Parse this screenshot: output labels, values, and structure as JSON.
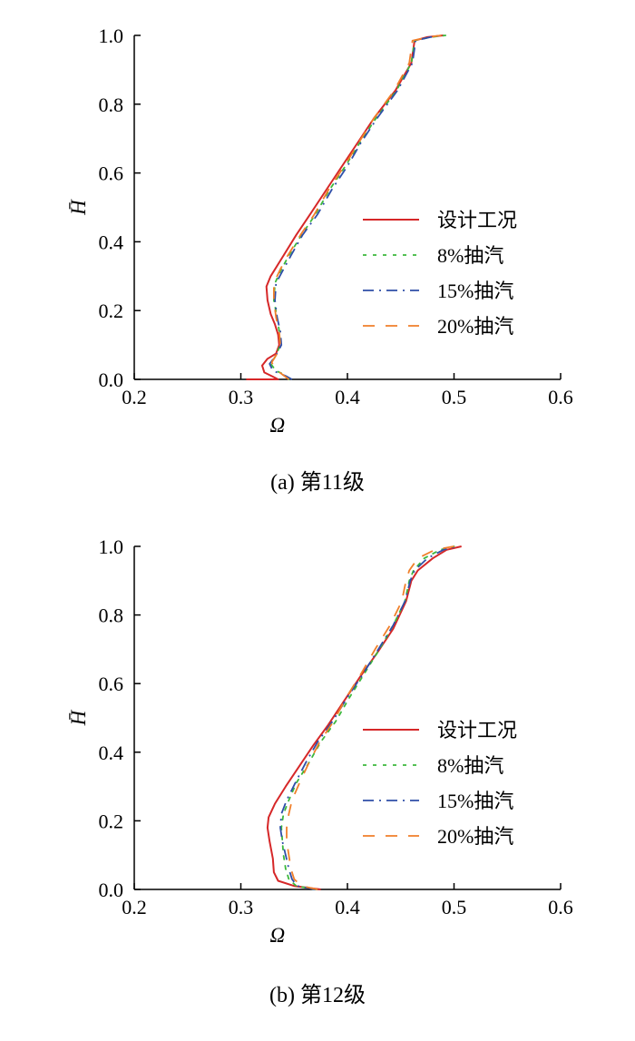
{
  "figure": {
    "captions": [
      "(a)  第11级",
      "(b)  第12级"
    ]
  },
  "legend_entries": [
    "设计工况",
    "8%抽汽",
    "15%抽汽",
    "20%抽汽"
  ],
  "chart_data": [
    {
      "type": "line",
      "title": "",
      "caption": "(a)  第11级",
      "xlabel": "Ω",
      "ylabel": "H̄",
      "xlim": [
        0.2,
        0.6
      ],
      "ylim": [
        0.0,
        1.0
      ],
      "xticks": [
        "0.2",
        "0.3",
        "0.4",
        "0.5",
        "0.6"
      ],
      "yticks": [
        "0.0",
        "0.2",
        "0.4",
        "0.6",
        "0.8",
        "1.0"
      ],
      "grid": false,
      "legend_position": "right",
      "series": [
        {
          "name": "设计工况",
          "color": "#d62728",
          "style": "solid",
          "points": [
            [
              0.305,
              0.0
            ],
            [
              0.335,
              0.0
            ],
            [
              0.33,
              0.008
            ],
            [
              0.322,
              0.02
            ],
            [
              0.32,
              0.04
            ],
            [
              0.325,
              0.06
            ],
            [
              0.333,
              0.075
            ],
            [
              0.336,
              0.1
            ],
            [
              0.335,
              0.13
            ],
            [
              0.332,
              0.16
            ],
            [
              0.328,
              0.19
            ],
            [
              0.325,
              0.23
            ],
            [
              0.324,
              0.27
            ],
            [
              0.328,
              0.3
            ],
            [
              0.34,
              0.36
            ],
            [
              0.352,
              0.42
            ],
            [
              0.365,
              0.48
            ],
            [
              0.38,
              0.55
            ],
            [
              0.395,
              0.62
            ],
            [
              0.41,
              0.69
            ],
            [
              0.425,
              0.76
            ],
            [
              0.445,
              0.84
            ],
            [
              0.46,
              0.92
            ],
            [
              0.463,
              0.985
            ],
            [
              0.475,
              0.995
            ],
            [
              0.49,
              1.0
            ]
          ]
        },
        {
          "name": "8%抽汽",
          "color": "#3cb83c",
          "style": "dotted",
          "points": [
            [
              0.345,
              0.0
            ],
            [
              0.342,
              0.012
            ],
            [
              0.333,
              0.025
            ],
            [
              0.328,
              0.045
            ],
            [
              0.333,
              0.07
            ],
            [
              0.337,
              0.1
            ],
            [
              0.336,
              0.14
            ],
            [
              0.334,
              0.18
            ],
            [
              0.331,
              0.23
            ],
            [
              0.332,
              0.28
            ],
            [
              0.338,
              0.32
            ],
            [
              0.345,
              0.36
            ],
            [
              0.357,
              0.42
            ],
            [
              0.37,
              0.48
            ],
            [
              0.383,
              0.55
            ],
            [
              0.398,
              0.62
            ],
            [
              0.412,
              0.69
            ],
            [
              0.427,
              0.76
            ],
            [
              0.446,
              0.84
            ],
            [
              0.46,
              0.92
            ],
            [
              0.463,
              0.985
            ],
            [
              0.478,
              0.995
            ],
            [
              0.492,
              1.0
            ]
          ]
        },
        {
          "name": "15%抽汽",
          "color": "#2f4fa8",
          "style": "dashdot",
          "points": [
            [
              0.348,
              0.0
            ],
            [
              0.342,
              0.01
            ],
            [
              0.33,
              0.025
            ],
            [
              0.327,
              0.045
            ],
            [
              0.333,
              0.07
            ],
            [
              0.338,
              0.1
            ],
            [
              0.337,
              0.14
            ],
            [
              0.334,
              0.18
            ],
            [
              0.332,
              0.23
            ],
            [
              0.333,
              0.28
            ],
            [
              0.34,
              0.32
            ],
            [
              0.347,
              0.36
            ],
            [
              0.358,
              0.42
            ],
            [
              0.372,
              0.48
            ],
            [
              0.385,
              0.55
            ],
            [
              0.4,
              0.62
            ],
            [
              0.413,
              0.69
            ],
            [
              0.428,
              0.76
            ],
            [
              0.447,
              0.84
            ],
            [
              0.461,
              0.92
            ],
            [
              0.464,
              0.985
            ],
            [
              0.478,
              0.995
            ],
            [
              0.49,
              1.0
            ]
          ]
        },
        {
          "name": "20%抽汽",
          "color": "#f07f2a",
          "style": "dashed",
          "points": [
            [
              0.345,
              0.0
            ],
            [
              0.34,
              0.012
            ],
            [
              0.332,
              0.03
            ],
            [
              0.329,
              0.05
            ],
            [
              0.334,
              0.075
            ],
            [
              0.337,
              0.1
            ],
            [
              0.336,
              0.14
            ],
            [
              0.333,
              0.18
            ],
            [
              0.331,
              0.23
            ],
            [
              0.331,
              0.28
            ],
            [
              0.337,
              0.32
            ],
            [
              0.344,
              0.36
            ],
            [
              0.356,
              0.42
            ],
            [
              0.369,
              0.48
            ],
            [
              0.382,
              0.55
            ],
            [
              0.397,
              0.62
            ],
            [
              0.411,
              0.69
            ],
            [
              0.425,
              0.76
            ],
            [
              0.444,
              0.84
            ],
            [
              0.458,
              0.92
            ],
            [
              0.461,
              0.985
            ],
            [
              0.476,
              0.995
            ],
            [
              0.488,
              1.0
            ]
          ]
        }
      ]
    },
    {
      "type": "line",
      "title": "",
      "caption": "(b)  第12级",
      "xlabel": "Ω",
      "ylabel": "H̄",
      "xlim": [
        0.2,
        0.6
      ],
      "ylim": [
        0.0,
        1.0
      ],
      "xticks": [
        "0.2",
        "0.3",
        "0.4",
        "0.5",
        "0.6"
      ],
      "yticks": [
        "0.0",
        "0.2",
        "0.4",
        "0.6",
        "0.8",
        "1.0"
      ],
      "grid": false,
      "legend_position": "right",
      "series": [
        {
          "name": "设计工况",
          "color": "#d62728",
          "style": "solid",
          "points": [
            [
              0.375,
              0.0
            ],
            [
              0.35,
              0.01
            ],
            [
              0.335,
              0.025
            ],
            [
              0.331,
              0.05
            ],
            [
              0.33,
              0.09
            ],
            [
              0.327,
              0.14
            ],
            [
              0.325,
              0.18
            ],
            [
              0.326,
              0.21
            ],
            [
              0.332,
              0.25
            ],
            [
              0.342,
              0.3
            ],
            [
              0.355,
              0.36
            ],
            [
              0.368,
              0.42
            ],
            [
              0.382,
              0.48
            ],
            [
              0.397,
              0.55
            ],
            [
              0.412,
              0.62
            ],
            [
              0.428,
              0.69
            ],
            [
              0.443,
              0.76
            ],
            [
              0.455,
              0.84
            ],
            [
              0.46,
              0.9
            ],
            [
              0.466,
              0.93
            ],
            [
              0.48,
              0.965
            ],
            [
              0.493,
              0.99
            ],
            [
              0.507,
              1.0
            ]
          ]
        },
        {
          "name": "8%抽汽",
          "color": "#3cb83c",
          "style": "dotted",
          "points": [
            [
              0.37,
              0.0
            ],
            [
              0.352,
              0.01
            ],
            [
              0.345,
              0.03
            ],
            [
              0.342,
              0.06
            ],
            [
              0.34,
              0.1
            ],
            [
              0.339,
              0.14
            ],
            [
              0.338,
              0.18
            ],
            [
              0.34,
              0.22
            ],
            [
              0.345,
              0.26
            ],
            [
              0.352,
              0.31
            ],
            [
              0.364,
              0.37
            ],
            [
              0.375,
              0.43
            ],
            [
              0.389,
              0.49
            ],
            [
              0.402,
              0.56
            ],
            [
              0.416,
              0.63
            ],
            [
              0.43,
              0.7
            ],
            [
              0.443,
              0.77
            ],
            [
              0.454,
              0.84
            ],
            [
              0.458,
              0.9
            ],
            [
              0.462,
              0.93
            ],
            [
              0.472,
              0.965
            ],
            [
              0.487,
              0.99
            ],
            [
              0.5,
              1.0
            ]
          ]
        },
        {
          "name": "15%抽汽",
          "color": "#2f4fa8",
          "style": "dashdot",
          "points": [
            [
              0.37,
              0.0
            ],
            [
              0.353,
              0.01
            ],
            [
              0.348,
              0.03
            ],
            [
              0.345,
              0.06
            ],
            [
              0.342,
              0.1
            ],
            [
              0.339,
              0.14
            ],
            [
              0.337,
              0.18
            ],
            [
              0.338,
              0.22
            ],
            [
              0.343,
              0.26
            ],
            [
              0.351,
              0.31
            ],
            [
              0.361,
              0.37
            ],
            [
              0.372,
              0.43
            ],
            [
              0.386,
              0.49
            ],
            [
              0.4,
              0.56
            ],
            [
              0.415,
              0.63
            ],
            [
              0.429,
              0.7
            ],
            [
              0.443,
              0.77
            ],
            [
              0.454,
              0.84
            ],
            [
              0.459,
              0.9
            ],
            [
              0.463,
              0.93
            ],
            [
              0.475,
              0.965
            ],
            [
              0.49,
              0.99
            ],
            [
              0.503,
              1.0
            ]
          ]
        },
        {
          "name": "20%抽汽",
          "color": "#f07f2a",
          "style": "dashed",
          "points": [
            [
              0.372,
              0.0
            ],
            [
              0.357,
              0.01
            ],
            [
              0.35,
              0.03
            ],
            [
              0.347,
              0.06
            ],
            [
              0.345,
              0.1
            ],
            [
              0.343,
              0.14
            ],
            [
              0.343,
              0.18
            ],
            [
              0.345,
              0.22
            ],
            [
              0.348,
              0.26
            ],
            [
              0.355,
              0.31
            ],
            [
              0.364,
              0.37
            ],
            [
              0.374,
              0.43
            ],
            [
              0.387,
              0.49
            ],
            [
              0.399,
              0.56
            ],
            [
              0.413,
              0.63
            ],
            [
              0.426,
              0.7
            ],
            [
              0.44,
              0.77
            ],
            [
              0.451,
              0.84
            ],
            [
              0.455,
              0.9
            ],
            [
              0.458,
              0.93
            ],
            [
              0.466,
              0.965
            ],
            [
              0.482,
              0.99
            ],
            [
              0.5,
              1.0
            ]
          ]
        }
      ]
    }
  ]
}
